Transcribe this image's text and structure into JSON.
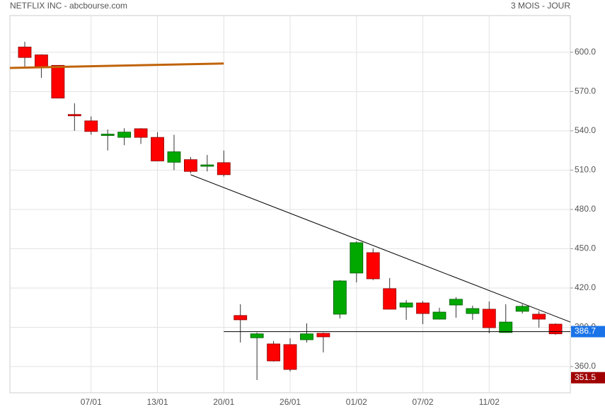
{
  "chart_data": {
    "type": "candlestick",
    "title": "NETFLIX INC - abcbourse.com",
    "subtitle": "3 MOIS - JOUR",
    "categories": [
      null,
      null,
      null,
      null,
      "07/01",
      null,
      null,
      null,
      "13/01",
      null,
      null,
      null,
      "20/01",
      null,
      null,
      null,
      "26/01",
      null,
      null,
      null,
      "01/02",
      null,
      null,
      null,
      "07/02",
      null,
      null,
      null,
      "11/02",
      null,
      null,
      null,
      null
    ],
    "open": [
      604,
      598,
      590,
      552.5,
      547.6,
      536.5,
      535,
      541.6,
      535,
      516,
      518,
      513,
      515.7,
      399,
      382,
      377.3,
      376.8,
      380.5,
      385.4,
      400,
      431.4,
      447,
      419.5,
      405.4,
      408.6,
      396.2,
      407,
      400.5,
      403.8,
      386,
      402.2,
      400,
      392.4
    ],
    "high": [
      608,
      598.4,
      590,
      561,
      551,
      541,
      542,
      542,
      539,
      537,
      520,
      521.6,
      525,
      407.6,
      386,
      379.5,
      381.6,
      393,
      386,
      426,
      455.7,
      450.3,
      427.6,
      410.8,
      410,
      404.9,
      413,
      406.5,
      409.7,
      407.6,
      407.6,
      402.2,
      393
    ],
    "low": [
      589,
      580.5,
      565,
      540,
      537,
      525,
      529,
      530,
      517,
      510,
      507.6,
      509,
      505,
      378.4,
      349.7,
      363.8,
      356.2,
      378.4,
      370.8,
      396.8,
      424.3,
      426,
      403.8,
      395.7,
      392.4,
      396,
      397.3,
      395.7,
      385.4,
      386,
      400.5,
      389.7,
      384.3
    ],
    "close": [
      596,
      589,
      565,
      551.5,
      539.5,
      537.5,
      539,
      535,
      517,
      524,
      509,
      514,
      506.5,
      395.7,
      385,
      364.3,
      357.8,
      385,
      382.7,
      425.4,
      454.6,
      427,
      403.8,
      408.6,
      400.5,
      401.6,
      411.4,
      404.3,
      389.7,
      394,
      406,
      396.2,
      385
    ],
    "up_color": "#00a800",
    "down_color": "#ff0000",
    "ylim": [
      340,
      628
    ],
    "yticks": [
      {
        "value": 360,
        "label": "360.0"
      },
      {
        "value": 390,
        "label": "390.0"
      },
      {
        "value": 420,
        "label": "420.0"
      },
      {
        "value": 450,
        "label": "450.0"
      },
      {
        "value": 480,
        "label": "480.0"
      },
      {
        "value": 510,
        "label": "510.0"
      },
      {
        "value": 540,
        "label": "540.0"
      },
      {
        "value": 570,
        "label": "570.0"
      },
      {
        "value": 600,
        "label": "600.0"
      }
    ],
    "grid": true,
    "lines": [
      {
        "color": "#c0630a",
        "x": [
          -0.9,
          12
        ],
        "y": [
          588,
          591.4
        ]
      },
      {
        "color": "#000000",
        "x": [
          10,
          32.9
        ],
        "y": [
          506.5,
          394
        ]
      },
      {
        "color": "#000000",
        "x": [
          12,
          32.9
        ],
        "y": [
          386.7,
          386.7
        ]
      }
    ],
    "price_labels": [
      {
        "value": 386.7,
        "color": "#1a73e8"
      },
      {
        "value": 351.5,
        "color": "#a00000"
      }
    ]
  }
}
